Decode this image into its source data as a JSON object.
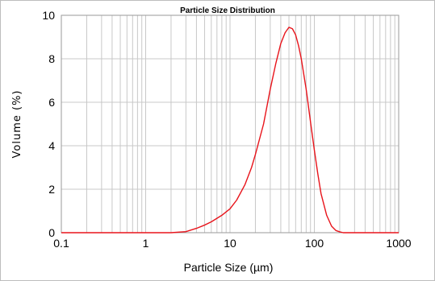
{
  "chart_data": {
    "type": "line",
    "title": "Particle Size Distribution",
    "xlabel": "Particle Size (µm)",
    "ylabel": "Volume (%)",
    "x_scale": "log",
    "xlim": [
      0.1,
      1000
    ],
    "ylim": [
      0,
      10
    ],
    "grid": true,
    "x_ticks": [
      "0.1",
      "1",
      "10",
      "100",
      "1000"
    ],
    "y_ticks": [
      "0",
      "2",
      "4",
      "6",
      "8",
      "10"
    ],
    "series": [
      {
        "color": "#e8141b",
        "x": [
          0.1,
          1,
          2,
          3,
          4,
          5,
          6,
          8,
          10,
          12,
          15,
          18,
          20,
          25,
          30,
          35,
          40,
          45,
          50,
          55,
          60,
          65,
          70,
          80,
          90,
          100,
          110,
          120,
          140,
          160,
          180,
          200,
          220,
          250,
          300,
          1000
        ],
        "y": [
          0,
          0,
          0,
          0.05,
          0.2,
          0.35,
          0.5,
          0.8,
          1.1,
          1.5,
          2.2,
          3.0,
          3.6,
          5.0,
          6.6,
          7.8,
          8.7,
          9.2,
          9.45,
          9.38,
          9.1,
          8.6,
          8.0,
          6.6,
          5.1,
          3.8,
          2.7,
          1.8,
          0.8,
          0.3,
          0.1,
          0.04,
          0,
          0,
          0,
          0
        ]
      }
    ]
  }
}
